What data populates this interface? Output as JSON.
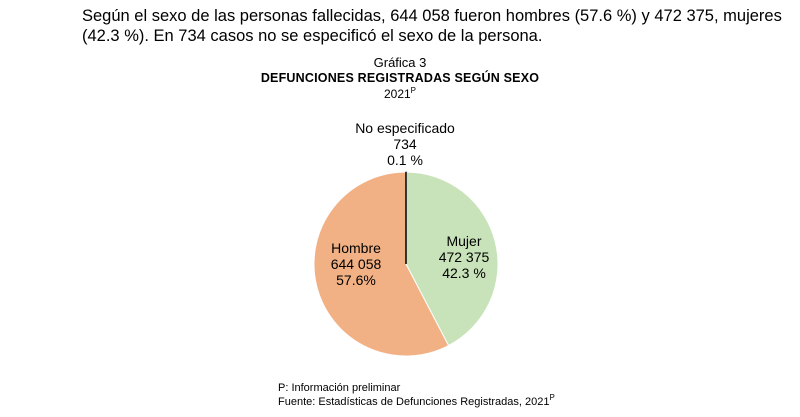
{
  "intro_text": "Según el sexo de las personas fallecidas, 644 058 fueron hombres (57.6 %) y 472 375, mujeres (42.3 %). En 734 casos no se especificó el sexo de la persona.",
  "chart_data": {
    "type": "pie",
    "caption": "Gráfica 3",
    "title": "DEFUNCIONES REGISTRADAS SEGÚN SEXO",
    "year": "2021",
    "year_sup": "P",
    "slices": [
      {
        "name": "No especificado",
        "value": 734,
        "value_label": "734",
        "percent_label": "0.1 %",
        "color": "#000000"
      },
      {
        "name": "Mujer",
        "value": 472375,
        "value_label": "472 375",
        "percent_label": "42.3 %",
        "color": "#c8e3b9"
      },
      {
        "name": "Hombre",
        "value": 644058,
        "value_label": "644 058",
        "percent_label": "57.6%",
        "color": "#f2b184"
      }
    ]
  },
  "notes": {
    "preliminary": "P: Información preliminar",
    "source": "Fuente: Estadísticas de Defunciones Registradas, 2021",
    "source_sup": "P"
  }
}
